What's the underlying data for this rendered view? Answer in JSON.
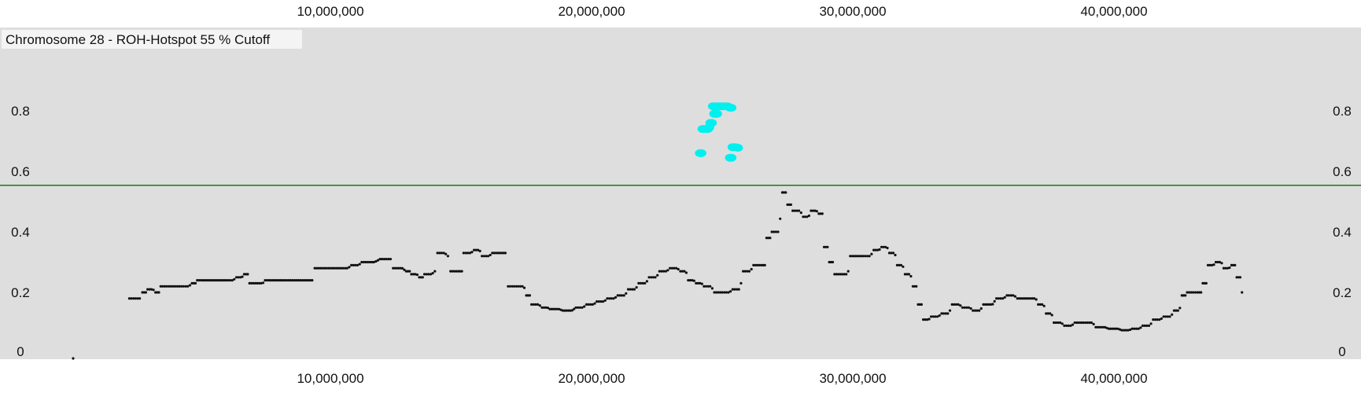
{
  "chart_data": {
    "type": "scatter",
    "title": "Chromosome 28 - ROH-Hotspot 55 % Cutoff",
    "xlabel": "",
    "ylabel": "",
    "xlim": [
      0,
      45000000
    ],
    "ylim": [
      0,
      1.0
    ],
    "x_ticks": [
      10000000,
      20000000,
      30000000,
      40000000
    ],
    "x_tick_labels": [
      "10,000,000",
      "20,000,000",
      "30,000,000",
      "40,000,000"
    ],
    "y_ticks": [
      0,
      0.2,
      0.4,
      0.6,
      0.8
    ],
    "y_tick_labels": [
      "0",
      "0.2",
      "0.4",
      "0.6",
      "0.8"
    ],
    "cutoff": 0.554,
    "grid": false,
    "colors": {
      "background": "#dedede",
      "normal": "#111111",
      "hotspot": "#00f0f0",
      "cutoff_line": "#1a7a1a"
    },
    "baseline_point": {
      "x": 150000,
      "y": 0.0
    },
    "profile": [
      [
        2300000,
        0.18
      ],
      [
        2700000,
        0.18
      ],
      [
        2800000,
        0.2
      ],
      [
        3000000,
        0.21
      ],
      [
        3300000,
        0.2
      ],
      [
        3500000,
        0.22
      ],
      [
        4300000,
        0.22
      ],
      [
        4700000,
        0.23
      ],
      [
        4900000,
        0.24
      ],
      [
        6000000,
        0.24
      ],
      [
        6400000,
        0.25
      ],
      [
        6700000,
        0.26
      ],
      [
        6900000,
        0.23
      ],
      [
        7200000,
        0.23
      ],
      [
        7500000,
        0.24
      ],
      [
        9300000,
        0.24
      ],
      [
        9400000,
        0.28
      ],
      [
        10400000,
        0.28
      ],
      [
        10800000,
        0.29
      ],
      [
        11200000,
        0.3
      ],
      [
        11900000,
        0.31
      ],
      [
        12300000,
        0.31
      ],
      [
        12400000,
        0.28
      ],
      [
        12900000,
        0.27
      ],
      [
        13100000,
        0.26
      ],
      [
        13400000,
        0.25
      ],
      [
        13600000,
        0.26
      ],
      [
        14000000,
        0.27
      ],
      [
        14100000,
        0.33
      ],
      [
        14500000,
        0.32
      ],
      [
        14600000,
        0.27
      ],
      [
        14900000,
        0.27
      ],
      [
        15100000,
        0.33
      ],
      [
        15500000,
        0.34
      ],
      [
        15800000,
        0.32
      ],
      [
        16200000,
        0.33
      ],
      [
        16700000,
        0.33
      ],
      [
        16800000,
        0.22
      ],
      [
        17200000,
        0.22
      ],
      [
        17500000,
        0.19
      ],
      [
        17700000,
        0.16
      ],
      [
        18100000,
        0.15
      ],
      [
        18400000,
        0.145
      ],
      [
        18900000,
        0.14
      ],
      [
        19400000,
        0.15
      ],
      [
        19800000,
        0.16
      ],
      [
        20200000,
        0.17
      ],
      [
        20600000,
        0.18
      ],
      [
        21000000,
        0.19
      ],
      [
        21400000,
        0.21
      ],
      [
        21800000,
        0.23
      ],
      [
        22200000,
        0.25
      ],
      [
        22600000,
        0.27
      ],
      [
        23000000,
        0.28
      ],
      [
        23400000,
        0.27
      ],
      [
        23700000,
        0.24
      ],
      [
        24000000,
        0.23
      ],
      [
        24300000,
        0.22
      ],
      [
        24700000,
        0.2
      ],
      [
        25000000,
        0.2
      ],
      [
        25400000,
        0.21
      ],
      [
        25800000,
        0.27
      ],
      [
        26200000,
        0.29
      ],
      [
        26500000,
        0.29
      ],
      [
        26700000,
        0.38
      ],
      [
        26900000,
        0.4
      ],
      [
        27300000,
        0.53
      ],
      [
        27500000,
        0.49
      ],
      [
        27700000,
        0.47
      ],
      [
        28100000,
        0.45
      ],
      [
        28400000,
        0.47
      ],
      [
        28700000,
        0.46
      ],
      [
        28900000,
        0.35
      ],
      [
        29100000,
        0.3
      ],
      [
        29300000,
        0.26
      ],
      [
        29600000,
        0.26
      ],
      [
        29900000,
        0.32
      ],
      [
        30400000,
        0.32
      ],
      [
        30800000,
        0.34
      ],
      [
        31100000,
        0.35
      ],
      [
        31400000,
        0.33
      ],
      [
        31700000,
        0.29
      ],
      [
        32000000,
        0.26
      ],
      [
        32300000,
        0.22
      ],
      [
        32500000,
        0.16
      ],
      [
        32700000,
        0.11
      ],
      [
        33000000,
        0.12
      ],
      [
        33400000,
        0.13
      ],
      [
        33800000,
        0.16
      ],
      [
        34200000,
        0.15
      ],
      [
        34600000,
        0.14
      ],
      [
        35000000,
        0.16
      ],
      [
        35500000,
        0.18
      ],
      [
        35900000,
        0.19
      ],
      [
        36300000,
        0.18
      ],
      [
        36800000,
        0.18
      ],
      [
        37100000,
        0.16
      ],
      [
        37400000,
        0.13
      ],
      [
        37700000,
        0.1
      ],
      [
        38100000,
        0.09
      ],
      [
        38500000,
        0.1
      ],
      [
        38900000,
        0.1
      ],
      [
        39300000,
        0.085
      ],
      [
        39800000,
        0.08
      ],
      [
        40300000,
        0.075
      ],
      [
        40700000,
        0.08
      ],
      [
        41100000,
        0.09
      ],
      [
        41500000,
        0.11
      ],
      [
        41900000,
        0.12
      ],
      [
        42300000,
        0.14
      ],
      [
        42600000,
        0.19
      ],
      [
        42800000,
        0.2
      ],
      [
        43200000,
        0.2
      ],
      [
        43400000,
        0.23
      ],
      [
        43600000,
        0.29
      ],
      [
        43900000,
        0.3
      ],
      [
        44200000,
        0.28
      ],
      [
        44500000,
        0.29
      ],
      [
        44700000,
        0.25
      ],
      [
        44900000,
        0.2
      ],
      [
        45000000,
        0.18
      ]
    ],
    "hotspot_points": [
      {
        "x": 24150000,
        "y": 0.66
      },
      {
        "x": 24200000,
        "y": 0.66
      },
      {
        "x": 24250000,
        "y": 0.74
      },
      {
        "x": 24300000,
        "y": 0.74
      },
      {
        "x": 24400000,
        "y": 0.74
      },
      {
        "x": 24450000,
        "y": 0.74
      },
      {
        "x": 24500000,
        "y": 0.745
      },
      {
        "x": 24550000,
        "y": 0.76
      },
      {
        "x": 24600000,
        "y": 0.76
      },
      {
        "x": 24700000,
        "y": 0.79
      },
      {
        "x": 24750000,
        "y": 0.79
      },
      {
        "x": 24800000,
        "y": 0.79
      },
      {
        "x": 24650000,
        "y": 0.815
      },
      {
        "x": 24750000,
        "y": 0.815
      },
      {
        "x": 24850000,
        "y": 0.815
      },
      {
        "x": 24950000,
        "y": 0.815
      },
      {
        "x": 25050000,
        "y": 0.815
      },
      {
        "x": 25200000,
        "y": 0.815
      },
      {
        "x": 25300000,
        "y": 0.81
      },
      {
        "x": 25350000,
        "y": 0.81
      },
      {
        "x": 25300000,
        "y": 0.645
      },
      {
        "x": 25350000,
        "y": 0.645
      },
      {
        "x": 25400000,
        "y": 0.68
      },
      {
        "x": 25500000,
        "y": 0.68
      },
      {
        "x": 25600000,
        "y": 0.678
      }
    ]
  }
}
